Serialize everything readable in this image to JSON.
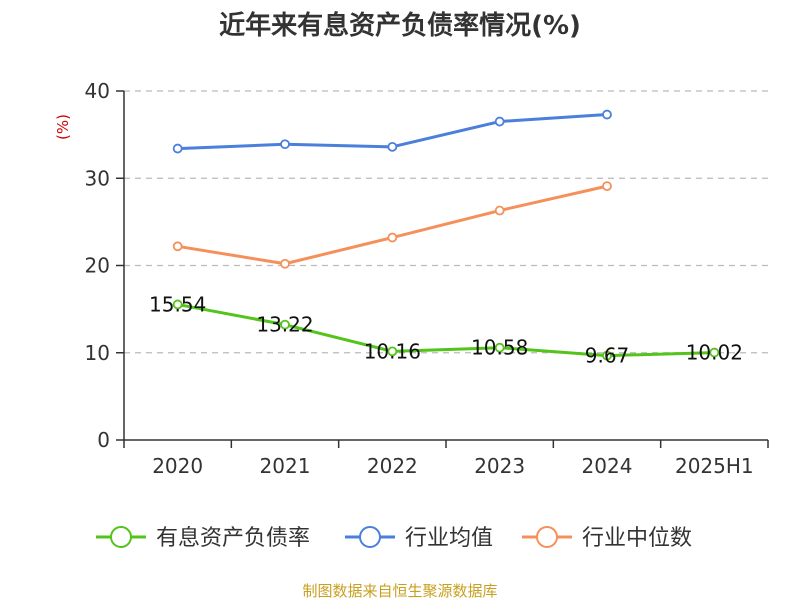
{
  "chart_data": {
    "type": "line",
    "title": "近年来有息资产负债率情况(%)",
    "ylabel": "(%)",
    "xlabel": "",
    "categories": [
      "2020",
      "2021",
      "2022",
      "2023",
      "2024",
      "2025H1"
    ],
    "ylim": [
      0,
      40
    ],
    "yticks": [
      0,
      10,
      20,
      30,
      40
    ],
    "grid": true,
    "legend_position": "bottom",
    "series": [
      {
        "name": "有息资产负债率",
        "color": "#52c41a",
        "values": [
          15.54,
          13.22,
          10.16,
          10.58,
          9.67,
          10.02
        ],
        "labels": [
          "15.54",
          "13.22",
          "10.16",
          "10.58",
          "9.67",
          "10.02"
        ]
      },
      {
        "name": "行业均值",
        "color": "#4a7fdc",
        "values": [
          33.4,
          33.9,
          33.6,
          36.5,
          37.3,
          null
        ]
      },
      {
        "name": "行业中位数",
        "color": "#f5905a",
        "values": [
          22.2,
          20.2,
          23.2,
          26.3,
          29.1,
          null
        ]
      }
    ]
  },
  "footer": {
    "source": "制图数据来自恒生聚源数据库"
  }
}
